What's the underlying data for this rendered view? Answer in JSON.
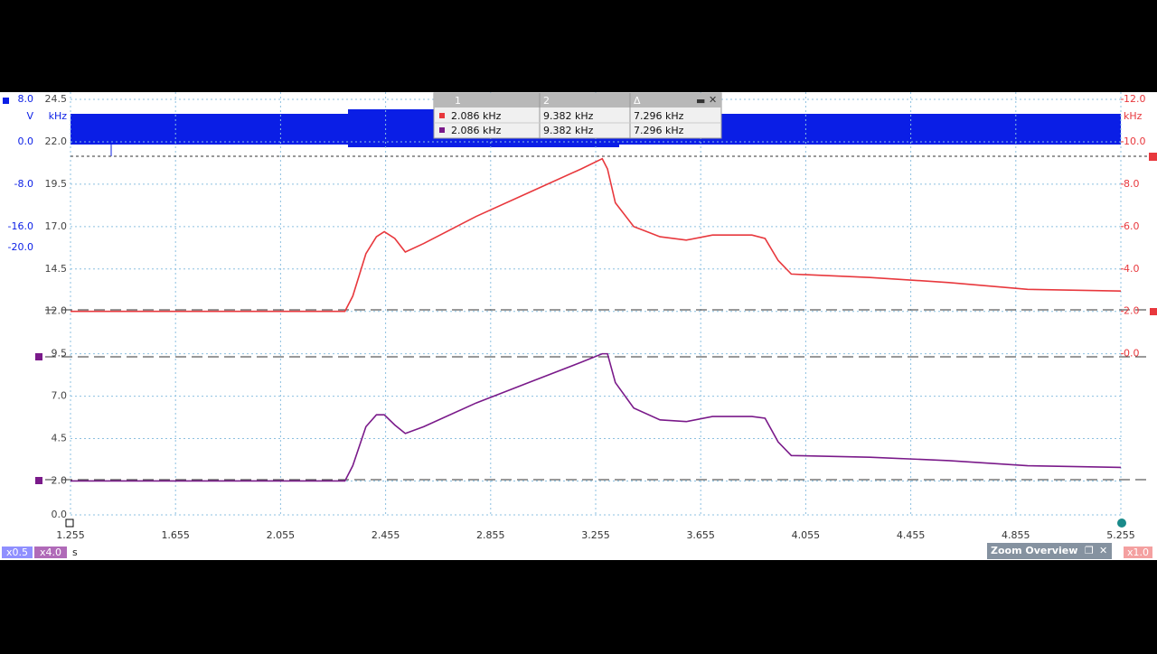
{
  "plot": {
    "x_unit": "s",
    "y_unit": "kHz",
    "y2_unit": "kHz",
    "xlim": [
      1.255,
      5.255
    ],
    "xticks": [
      1.255,
      1.655,
      2.055,
      2.455,
      2.855,
      3.255,
      3.655,
      4.055,
      4.455,
      4.855,
      5.255
    ],
    "ylim": [
      0,
      24.5
    ],
    "yticks": [
      {
        "value": 24.5,
        "label": "24.5"
      },
      {
        "value": 22,
        "label": "22.0"
      },
      {
        "value": 19.5,
        "label": "19.5"
      },
      {
        "value": 17,
        "label": "17.0"
      },
      {
        "value": 14.5,
        "label": "14.5"
      },
      {
        "value": 12,
        "label": "12.0"
      },
      {
        "value": 9.5,
        "label": "9.5"
      },
      {
        "value": 7,
        "label": "7.0"
      },
      {
        "value": 4.5,
        "label": "4.5"
      },
      {
        "value": 2,
        "label": "2.0"
      },
      {
        "value": 0,
        "label": "0.0"
      }
    ],
    "y2lim": [
      -7.6,
      12
    ],
    "y2ticks": [
      {
        "value": 12,
        "label": "12.0"
      },
      {
        "value": 10,
        "label": "10.0"
      },
      {
        "value": 8,
        "label": "8.0"
      },
      {
        "value": 6,
        "label": "6.0"
      },
      {
        "value": 4,
        "label": "4.0"
      },
      {
        "value": 2,
        "label": "2.0"
      },
      {
        "value": 0,
        "label": "0.0"
      }
    ],
    "voltage_labels": [
      "8.0",
      "V",
      "0.0",
      "-8.0",
      "-16.0",
      "-20.0"
    ],
    "series": [
      {
        "color": "#e8383d",
        "x": [
          1.255,
          2.3,
          2.33,
          2.38,
          2.42,
          2.45,
          2.49,
          2.53,
          2.6,
          2.8,
          3.0,
          3.2,
          3.28,
          3.3,
          3.33,
          3.4,
          3.5,
          3.6,
          3.7,
          3.85,
          3.9,
          3.95,
          4.0,
          4.3,
          4.6,
          4.9,
          5.255
        ],
        "values": [
          12.0,
          12.0,
          12.9,
          15.4,
          16.4,
          16.7,
          16.3,
          15.5,
          16.0,
          17.6,
          19.0,
          20.4,
          21.0,
          20.4,
          18.4,
          17.0,
          16.4,
          16.2,
          16.5,
          16.5,
          16.3,
          15.0,
          14.2,
          14.0,
          13.7,
          13.3,
          13.2
        ]
      },
      {
        "color": "#7a1a8a",
        "x": [
          1.255,
          2.3,
          2.33,
          2.38,
          2.42,
          2.45,
          2.49,
          2.53,
          2.6,
          2.8,
          3.0,
          3.2,
          3.28,
          3.3,
          3.33,
          3.4,
          3.5,
          3.6,
          3.7,
          3.85,
          3.9,
          3.95,
          4.0,
          4.3,
          4.6,
          4.9,
          5.255
        ],
        "values": [
          2.0,
          2.0,
          2.9,
          5.2,
          5.9,
          5.9,
          5.3,
          4.8,
          5.2,
          6.6,
          7.8,
          9.0,
          9.5,
          9.5,
          7.8,
          6.3,
          5.6,
          5.5,
          5.8,
          5.8,
          5.7,
          4.3,
          3.5,
          3.4,
          3.2,
          2.9,
          2.8
        ]
      }
    ]
  },
  "measurements": {
    "headers": [
      "1",
      "2",
      "Δ"
    ],
    "rows": [
      [
        "2.086 kHz",
        "9.382 kHz",
        "7.296 kHz"
      ],
      [
        "2.086 kHz",
        "9.382 kHz",
        "7.296 kHz"
      ]
    ]
  },
  "controls": {
    "zoom_a": "x0.5",
    "zoom_b": "x4.0",
    "zoom_panel": "Zoom Overview",
    "zoom_c": "x1.0"
  }
}
